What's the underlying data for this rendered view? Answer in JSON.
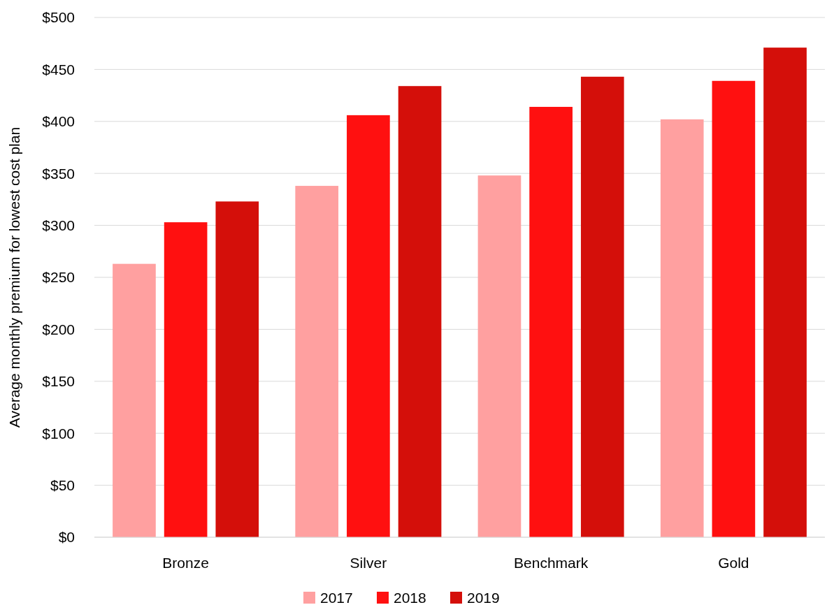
{
  "chart_data": {
    "type": "bar",
    "ylabel": "Average monthly premium for lowest cost plan",
    "categories": [
      "Bronze",
      "Silver",
      "Benchmark",
      "Gold"
    ],
    "series": [
      {
        "name": "2017",
        "color": "#ffa0a0",
        "values": [
          263,
          338,
          348,
          402
        ]
      },
      {
        "name": "2018",
        "color": "#ff1010",
        "values": [
          303,
          406,
          414,
          439
        ]
      },
      {
        "name": "2019",
        "color": "#d40f0a",
        "values": [
          323,
          434,
          443,
          471
        ]
      }
    ],
    "ylim": [
      0,
      500
    ],
    "yticks": [
      {
        "value": 0,
        "label": "$0"
      },
      {
        "value": 50,
        "label": "$50"
      },
      {
        "value": 100,
        "label": "$100"
      },
      {
        "value": 150,
        "label": "$150"
      },
      {
        "value": 200,
        "label": "$200"
      },
      {
        "value": 250,
        "label": "$250"
      },
      {
        "value": 300,
        "label": "$300"
      },
      {
        "value": 350,
        "label": "$350"
      },
      {
        "value": 400,
        "label": "$400"
      },
      {
        "value": 450,
        "label": "$450"
      },
      {
        "value": 500,
        "label": "$500"
      }
    ],
    "grid": "y",
    "legend": "bottom"
  }
}
